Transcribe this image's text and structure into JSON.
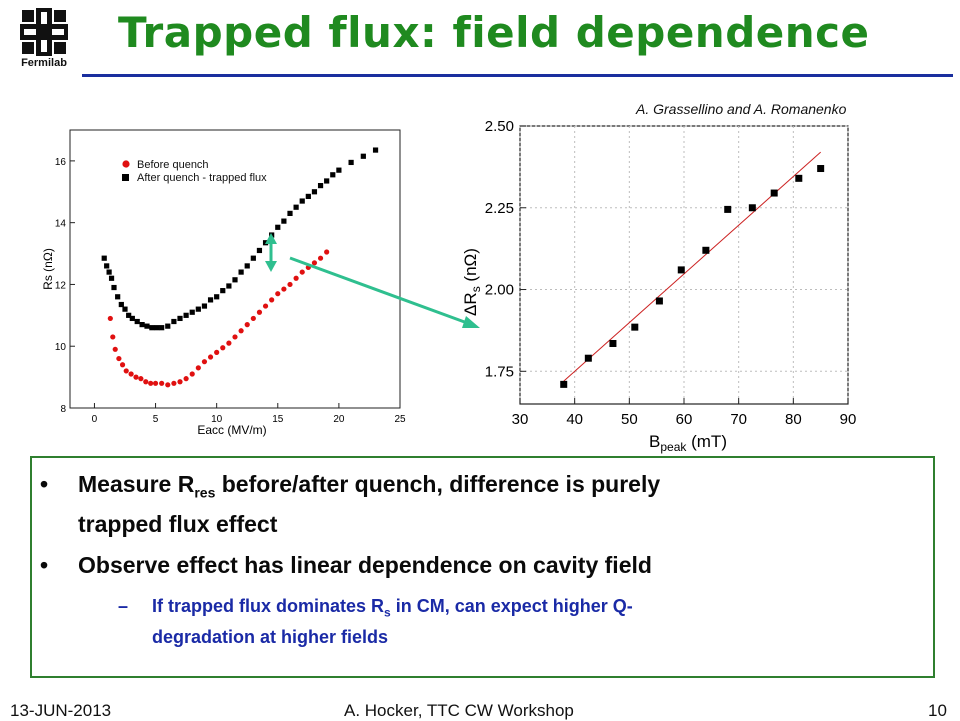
{
  "header": {
    "logo_text": "Fermilab",
    "title": "Trapped flux: field dependence",
    "credit": "A. Grassellino and A. Romanenko"
  },
  "colors": {
    "title_green": "#1f8a1f",
    "rule_blue": "#1a2e9e",
    "sub_blue": "#1a2aa6",
    "arrow_teal": "#2fbf8f",
    "before_red": "#e01010",
    "after_black": "#000000",
    "fit_red": "#cc2222"
  },
  "chart_data": [
    {
      "type": "scatter",
      "xlabel": "Eacc (MV/m)",
      "ylabel": "Rs (nΩ)",
      "xlim": [
        -2,
        25
      ],
      "ylim": [
        8,
        17
      ],
      "xticks": [
        0,
        5,
        10,
        15,
        20,
        25
      ],
      "yticks": [
        8,
        10,
        12,
        14,
        16
      ],
      "legend": "top-left",
      "series": [
        {
          "name": "Before quench",
          "color": "#e01010",
          "marker": "circle",
          "x": [
            1.3,
            1.5,
            1.7,
            2.0,
            2.3,
            2.6,
            3.0,
            3.4,
            3.8,
            4.2,
            4.6,
            5.0,
            5.5,
            6.0,
            6.5,
            7.0,
            7.5,
            8.0,
            8.5,
            9.0,
            9.5,
            10.0,
            10.5,
            11.0,
            11.5,
            12.0,
            12.5,
            13.0,
            13.5,
            14.0,
            14.5,
            15.0,
            15.5,
            16.0,
            16.5,
            17.0,
            17.5,
            18.0,
            18.5,
            19.0
          ],
          "y": [
            10.9,
            10.3,
            9.9,
            9.6,
            9.4,
            9.2,
            9.1,
            9.0,
            8.95,
            8.85,
            8.8,
            8.8,
            8.8,
            8.75,
            8.8,
            8.85,
            8.95,
            9.1,
            9.3,
            9.5,
            9.65,
            9.8,
            9.95,
            10.1,
            10.3,
            10.5,
            10.7,
            10.9,
            11.1,
            11.3,
            11.5,
            11.7,
            11.85,
            12.0,
            12.2,
            12.4,
            12.55,
            12.7,
            12.85,
            13.05
          ]
        },
        {
          "name": "After quench - trapped flux",
          "color": "#000000",
          "marker": "square",
          "x": [
            0.8,
            1.0,
            1.2,
            1.4,
            1.6,
            1.9,
            2.2,
            2.5,
            2.8,
            3.1,
            3.5,
            3.9,
            4.3,
            4.7,
            5.1,
            5.5,
            6.0,
            6.5,
            7.0,
            7.5,
            8.0,
            8.5,
            9.0,
            9.5,
            10.0,
            10.5,
            11.0,
            11.5,
            12.0,
            12.5,
            13.0,
            13.5,
            14.0,
            14.5,
            15.0,
            15.5,
            16.0,
            16.5,
            17.0,
            17.5,
            18.0,
            18.5,
            19.0,
            19.5,
            20.0,
            21.0,
            22.0,
            23.0
          ],
          "y": [
            12.85,
            12.6,
            12.4,
            12.2,
            11.9,
            11.6,
            11.35,
            11.2,
            11.0,
            10.9,
            10.8,
            10.7,
            10.65,
            10.6,
            10.6,
            10.6,
            10.65,
            10.8,
            10.9,
            11.0,
            11.1,
            11.2,
            11.3,
            11.5,
            11.6,
            11.8,
            11.95,
            12.15,
            12.4,
            12.6,
            12.85,
            13.1,
            13.35,
            13.6,
            13.85,
            14.05,
            14.3,
            14.5,
            14.7,
            14.85,
            15.0,
            15.2,
            15.35,
            15.55,
            15.7,
            15.95,
            16.15,
            16.35
          ]
        }
      ]
    },
    {
      "type": "scatter",
      "xlabel": "B",
      "xlabel_sub": "peak",
      "xlabel_unit": " (mT)",
      "ylabel": "ΔR",
      "ylabel_sub": "s",
      "ylabel_unit": " (nΩ)",
      "xlim": [
        30,
        90
      ],
      "ylim": [
        1.65,
        2.5
      ],
      "xticks": [
        "30",
        "40",
        "50",
        "60",
        "70",
        "80",
        "90"
      ],
      "yticks": [
        "1.75",
        "2.00",
        "2.25",
        "2.50"
      ],
      "grid": true,
      "series": [
        {
          "color": "#000000",
          "marker": "square",
          "x": [
            38,
            42.5,
            47,
            51,
            55.5,
            59.5,
            64,
            68,
            72.5,
            76.5,
            81,
            85
          ],
          "y": [
            1.71,
            1.79,
            1.835,
            1.885,
            1.965,
            2.06,
            2.12,
            2.245,
            2.25,
            2.295,
            2.34,
            2.37
          ]
        }
      ],
      "fit_line": {
        "color": "#cc2222",
        "x": [
          38,
          85
        ],
        "y": [
          1.72,
          2.42
        ]
      }
    }
  ],
  "bullets": {
    "b1_pre": "Measure R",
    "b1_sub": "res",
    "b1_post": " before/after quench, difference is purely",
    "b1_line2": "trapped flux effect",
    "b2": "Observe effect has linear dependence on cavity field",
    "sub_dash": "–",
    "sub_pre": "If trapped flux dominates R",
    "sub_sub": "s",
    "sub_post": " in CM, can expect higher Q-",
    "sub_line2": "degradation at higher fields"
  },
  "footer": {
    "date": "13-JUN-2013",
    "author": "A. Hocker, TTC CW Workshop",
    "page": "10"
  }
}
